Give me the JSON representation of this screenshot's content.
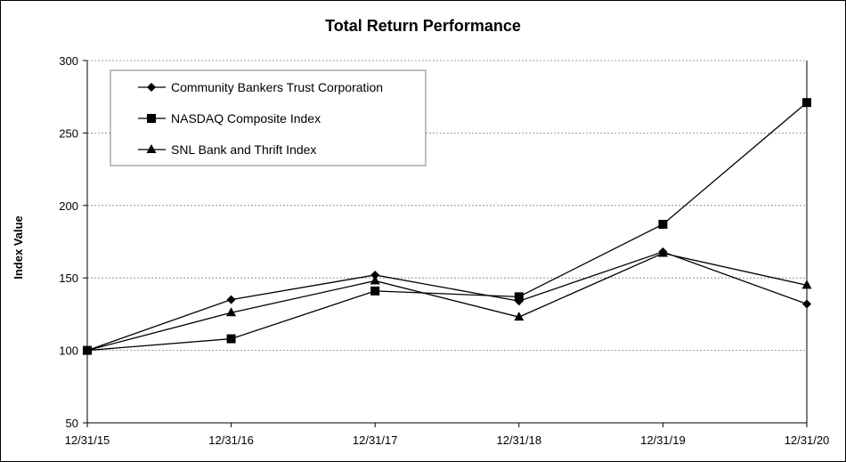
{
  "chart_data": {
    "type": "line",
    "title": "Total Return Performance",
    "xlabel": "",
    "ylabel": "Index Value",
    "categories": [
      "12/31/15",
      "12/31/16",
      "12/31/17",
      "12/31/18",
      "12/31/19",
      "12/31/20"
    ],
    "ylim": [
      50,
      300
    ],
    "yticks": [
      50,
      100,
      150,
      200,
      250,
      300
    ],
    "grid": true,
    "legend_position": "top-left",
    "series": [
      {
        "name": "Community Bankers Trust Corporation",
        "marker": "diamond",
        "values": [
          100,
          135,
          152,
          134,
          168,
          132
        ]
      },
      {
        "name": "NASDAQ Composite Index",
        "marker": "square",
        "values": [
          100,
          108,
          141,
          137,
          187,
          271
        ]
      },
      {
        "name": "SNL Bank and Thrift Index",
        "marker": "triangle",
        "values": [
          100,
          126,
          148,
          123,
          167,
          145
        ]
      }
    ],
    "colors": {
      "line": "#000000",
      "grid": "#808080",
      "axis": "#000000"
    }
  }
}
